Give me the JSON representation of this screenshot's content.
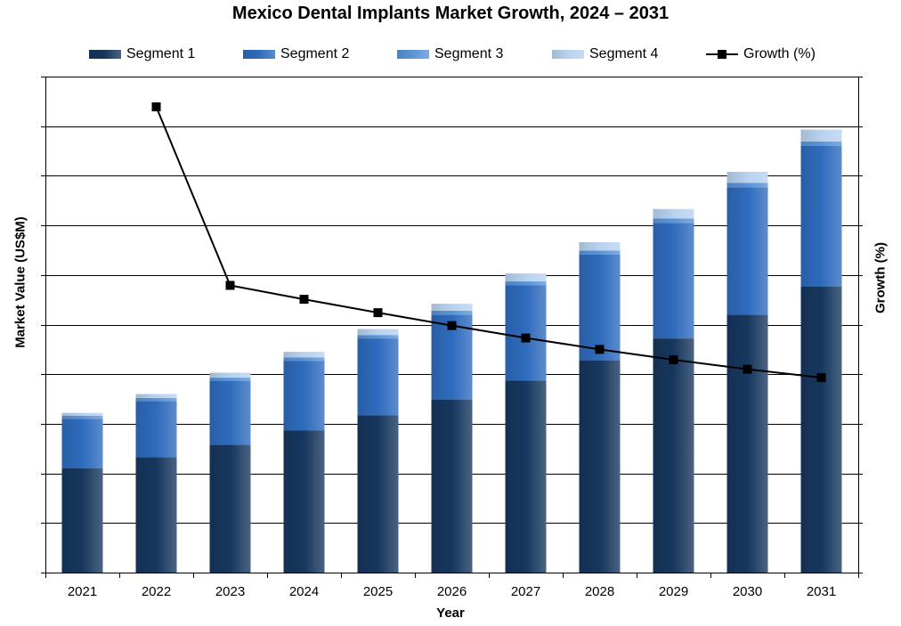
{
  "chart_data": {
    "type": "bar",
    "stacked": true,
    "title": "Mexico Dental Implants Market Growth, 2024 – 2031",
    "xlabel": "Year",
    "ylabel": "Market Value (US$M)",
    "y2label": "Growth (%)",
    "categories": [
      "2021",
      "2022",
      "2023",
      "2024",
      "2025",
      "2026",
      "2027",
      "2028",
      "2029",
      "2030",
      "2031"
    ],
    "series": [
      {
        "name": "Segment 1",
        "type": "bar",
        "axis": "left",
        "color": "#17375e",
        "values": [
          2.1,
          2.33,
          2.58,
          2.87,
          3.17,
          3.49,
          3.87,
          4.28,
          4.72,
          5.2,
          5.77
        ]
      },
      {
        "name": "Segment 2",
        "type": "bar",
        "axis": "left",
        "color": "#2f6bbd",
        "values": [
          1.0,
          1.13,
          1.28,
          1.4,
          1.55,
          1.71,
          1.92,
          2.13,
          2.33,
          2.57,
          2.83
        ]
      },
      {
        "name": "Segment 3",
        "type": "bar",
        "axis": "left",
        "color": "#5b94d6",
        "values": [
          0.06,
          0.06,
          0.07,
          0.07,
          0.07,
          0.08,
          0.08,
          0.08,
          0.09,
          0.09,
          0.09
        ]
      },
      {
        "name": "Segment 4",
        "type": "bar",
        "axis": "left",
        "color": "#b8d2f0",
        "values": [
          0.06,
          0.08,
          0.1,
          0.11,
          0.12,
          0.14,
          0.16,
          0.17,
          0.19,
          0.22,
          0.24
        ]
      },
      {
        "name": "Growth (%)",
        "type": "line",
        "axis": "right",
        "color": "#000000",
        "values": [
          null,
          9.39,
          5.79,
          5.51,
          5.24,
          4.98,
          4.73,
          4.5,
          4.29,
          4.1,
          3.93
        ]
      }
    ],
    "ylim": [
      0,
      10
    ],
    "y2lim": [
      0,
      10
    ],
    "grid": true,
    "legend": "top",
    "y_tick_labels": false
  }
}
